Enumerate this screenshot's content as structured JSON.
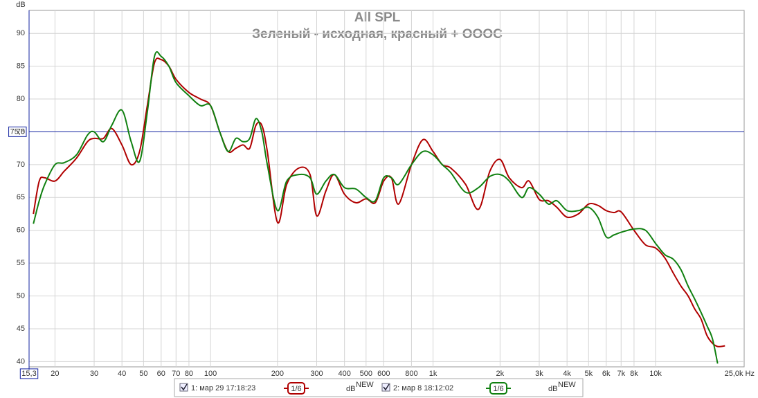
{
  "chart_data": {
    "type": "line",
    "title": "All SPL",
    "subtitle": "Зеленый - исходная, красный + ОООС",
    "y_label": "dB",
    "x_log": true,
    "grid": true,
    "xlim": [
      15.3,
      25000
    ],
    "ylim": [
      39.2,
      93.5
    ],
    "yticks": [
      40,
      45,
      50,
      55,
      60,
      65,
      70,
      75,
      80,
      85,
      90
    ],
    "xticks": [
      {
        "value": 15.3,
        "label": "15,3"
      },
      20,
      30,
      40,
      50,
      60,
      70,
      80,
      100,
      200,
      300,
      400,
      500,
      600,
      800,
      {
        "value": 1000,
        "label": "1k"
      },
      {
        "value": 2000,
        "label": "2k"
      },
      {
        "value": 3000,
        "label": "3k"
      },
      {
        "value": 4000,
        "label": "4k"
      },
      {
        "value": 5000,
        "label": "5k"
      },
      {
        "value": 6000,
        "label": "6k"
      },
      {
        "value": 7000,
        "label": "7k"
      },
      {
        "value": 8000,
        "label": "8k"
      },
      {
        "value": 10000,
        "label": "10k"
      },
      {
        "value": 25000,
        "label": "25,0k Hz"
      }
    ],
    "cursor": {
      "value": 75,
      "label": "75,0"
    },
    "x": [
      16,
      17,
      18,
      20,
      22,
      25,
      28,
      30,
      33,
      36,
      40,
      44,
      48,
      52,
      56,
      60,
      65,
      70,
      80,
      90,
      100,
      110,
      120,
      130,
      140,
      150,
      160,
      170,
      180,
      200,
      220,
      250,
      280,
      300,
      330,
      360,
      400,
      450,
      500,
      550,
      600,
      650,
      700,
      800,
      900,
      1000,
      1100,
      1200,
      1400,
      1600,
      1800,
      2000,
      2200,
      2500,
      2700,
      3000,
      3300,
      3600,
      4000,
      4500,
      5000,
      5500,
      6000,
      6500,
      7000,
      8000,
      9000,
      10000,
      11000,
      12000,
      13000,
      14000,
      15000,
      16000,
      17000,
      18000,
      19000,
      20500
    ],
    "series": [
      {
        "name": "1: мар 29 17:18:23",
        "color": "#b00000",
        "smoothing": "1/6",
        "unit": "dB",
        "unit_badge": "NEW",
        "values": [
          62.5,
          67.5,
          68,
          67.5,
          69,
          71,
          73.5,
          74,
          74,
          75.5,
          73,
          70,
          72,
          79,
          85.5,
          86,
          85,
          83,
          81,
          80,
          79,
          75,
          72,
          72.5,
          73,
          72.5,
          76,
          76,
          72,
          61.2,
          67,
          69.5,
          68.5,
          62.2,
          66,
          68.5,
          65.5,
          64.2,
          64.8,
          64.2,
          67.5,
          68,
          64,
          70,
          73.8,
          72,
          70,
          69.5,
          67,
          63.2,
          69,
          70.8,
          68,
          66.5,
          67.5,
          64.7,
          64.5,
          63.5,
          62,
          62.5,
          64,
          63.8,
          63,
          62.7,
          62.8,
          60,
          57.8,
          57.3,
          55.8,
          53.5,
          51.5,
          50,
          48,
          46.5,
          44,
          42.8,
          42.3,
          42.4
        ]
      },
      {
        "name": "2: мар 8 18:12:02",
        "color": "#108010",
        "smoothing": "1/6",
        "unit": "dB",
        "unit_badge": "NEW",
        "values": [
          61,
          64.5,
          67,
          70,
          70.3,
          71.5,
          74.5,
          75,
          73.5,
          76,
          78.3,
          73.5,
          70.5,
          78,
          86.5,
          86.5,
          85,
          82.5,
          80.5,
          79,
          79,
          75,
          72,
          74,
          73.5,
          74,
          77,
          75,
          70,
          63,
          67.5,
          68.5,
          68,
          65.5,
          67.5,
          68.5,
          66.5,
          66.3,
          65,
          64.5,
          68,
          68,
          67,
          70,
          72,
          71.5,
          70,
          68.8,
          65.8,
          66.5,
          68.2,
          68.5,
          67.5,
          65,
          66.5,
          65.5,
          64,
          64.5,
          63,
          63,
          63.5,
          62,
          59,
          59.3,
          59.7,
          60.2,
          60,
          58,
          56.3,
          55.6,
          54,
          51.5,
          49.5,
          47.5,
          45.5,
          43.5,
          39.7,
          null
        ]
      }
    ]
  }
}
